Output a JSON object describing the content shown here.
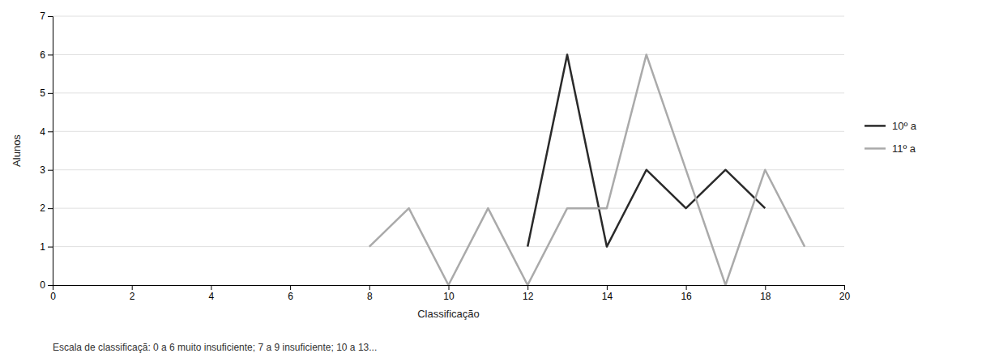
{
  "chart_data": {
    "type": "line",
    "x_label": "Classificação",
    "y_label": "Alunos",
    "annotations": [
      "Escala de classificaçã: 0 a 6 muito insuficiente; 7 a 9 insuficiente; 10 a 13..."
    ],
    "series": [
      {
        "name": "10º a",
        "color": "#2a2a2a",
        "x": [
          12,
          13,
          14,
          15,
          16,
          17,
          18
        ],
        "values": [
          1,
          6,
          1,
          3,
          2,
          3,
          2
        ]
      },
      {
        "name": "11º a",
        "color": "#aaaaaa",
        "x": [
          8,
          9,
          10,
          11,
          12,
          13,
          14,
          15,
          16,
          17,
          18,
          19
        ],
        "values": [
          1,
          2,
          0,
          2,
          0,
          2,
          2,
          6,
          3,
          0,
          3,
          1
        ]
      }
    ],
    "xlim": [
      0,
      20
    ],
    "xticks": [
      0,
      2,
      4,
      6,
      8,
      10,
      12,
      14,
      16,
      18,
      20
    ],
    "ylim": [
      0,
      7
    ],
    "yticks": [
      0,
      1,
      2,
      3,
      4,
      5,
      6,
      7
    ],
    "grid": true,
    "legend": "right"
  }
}
